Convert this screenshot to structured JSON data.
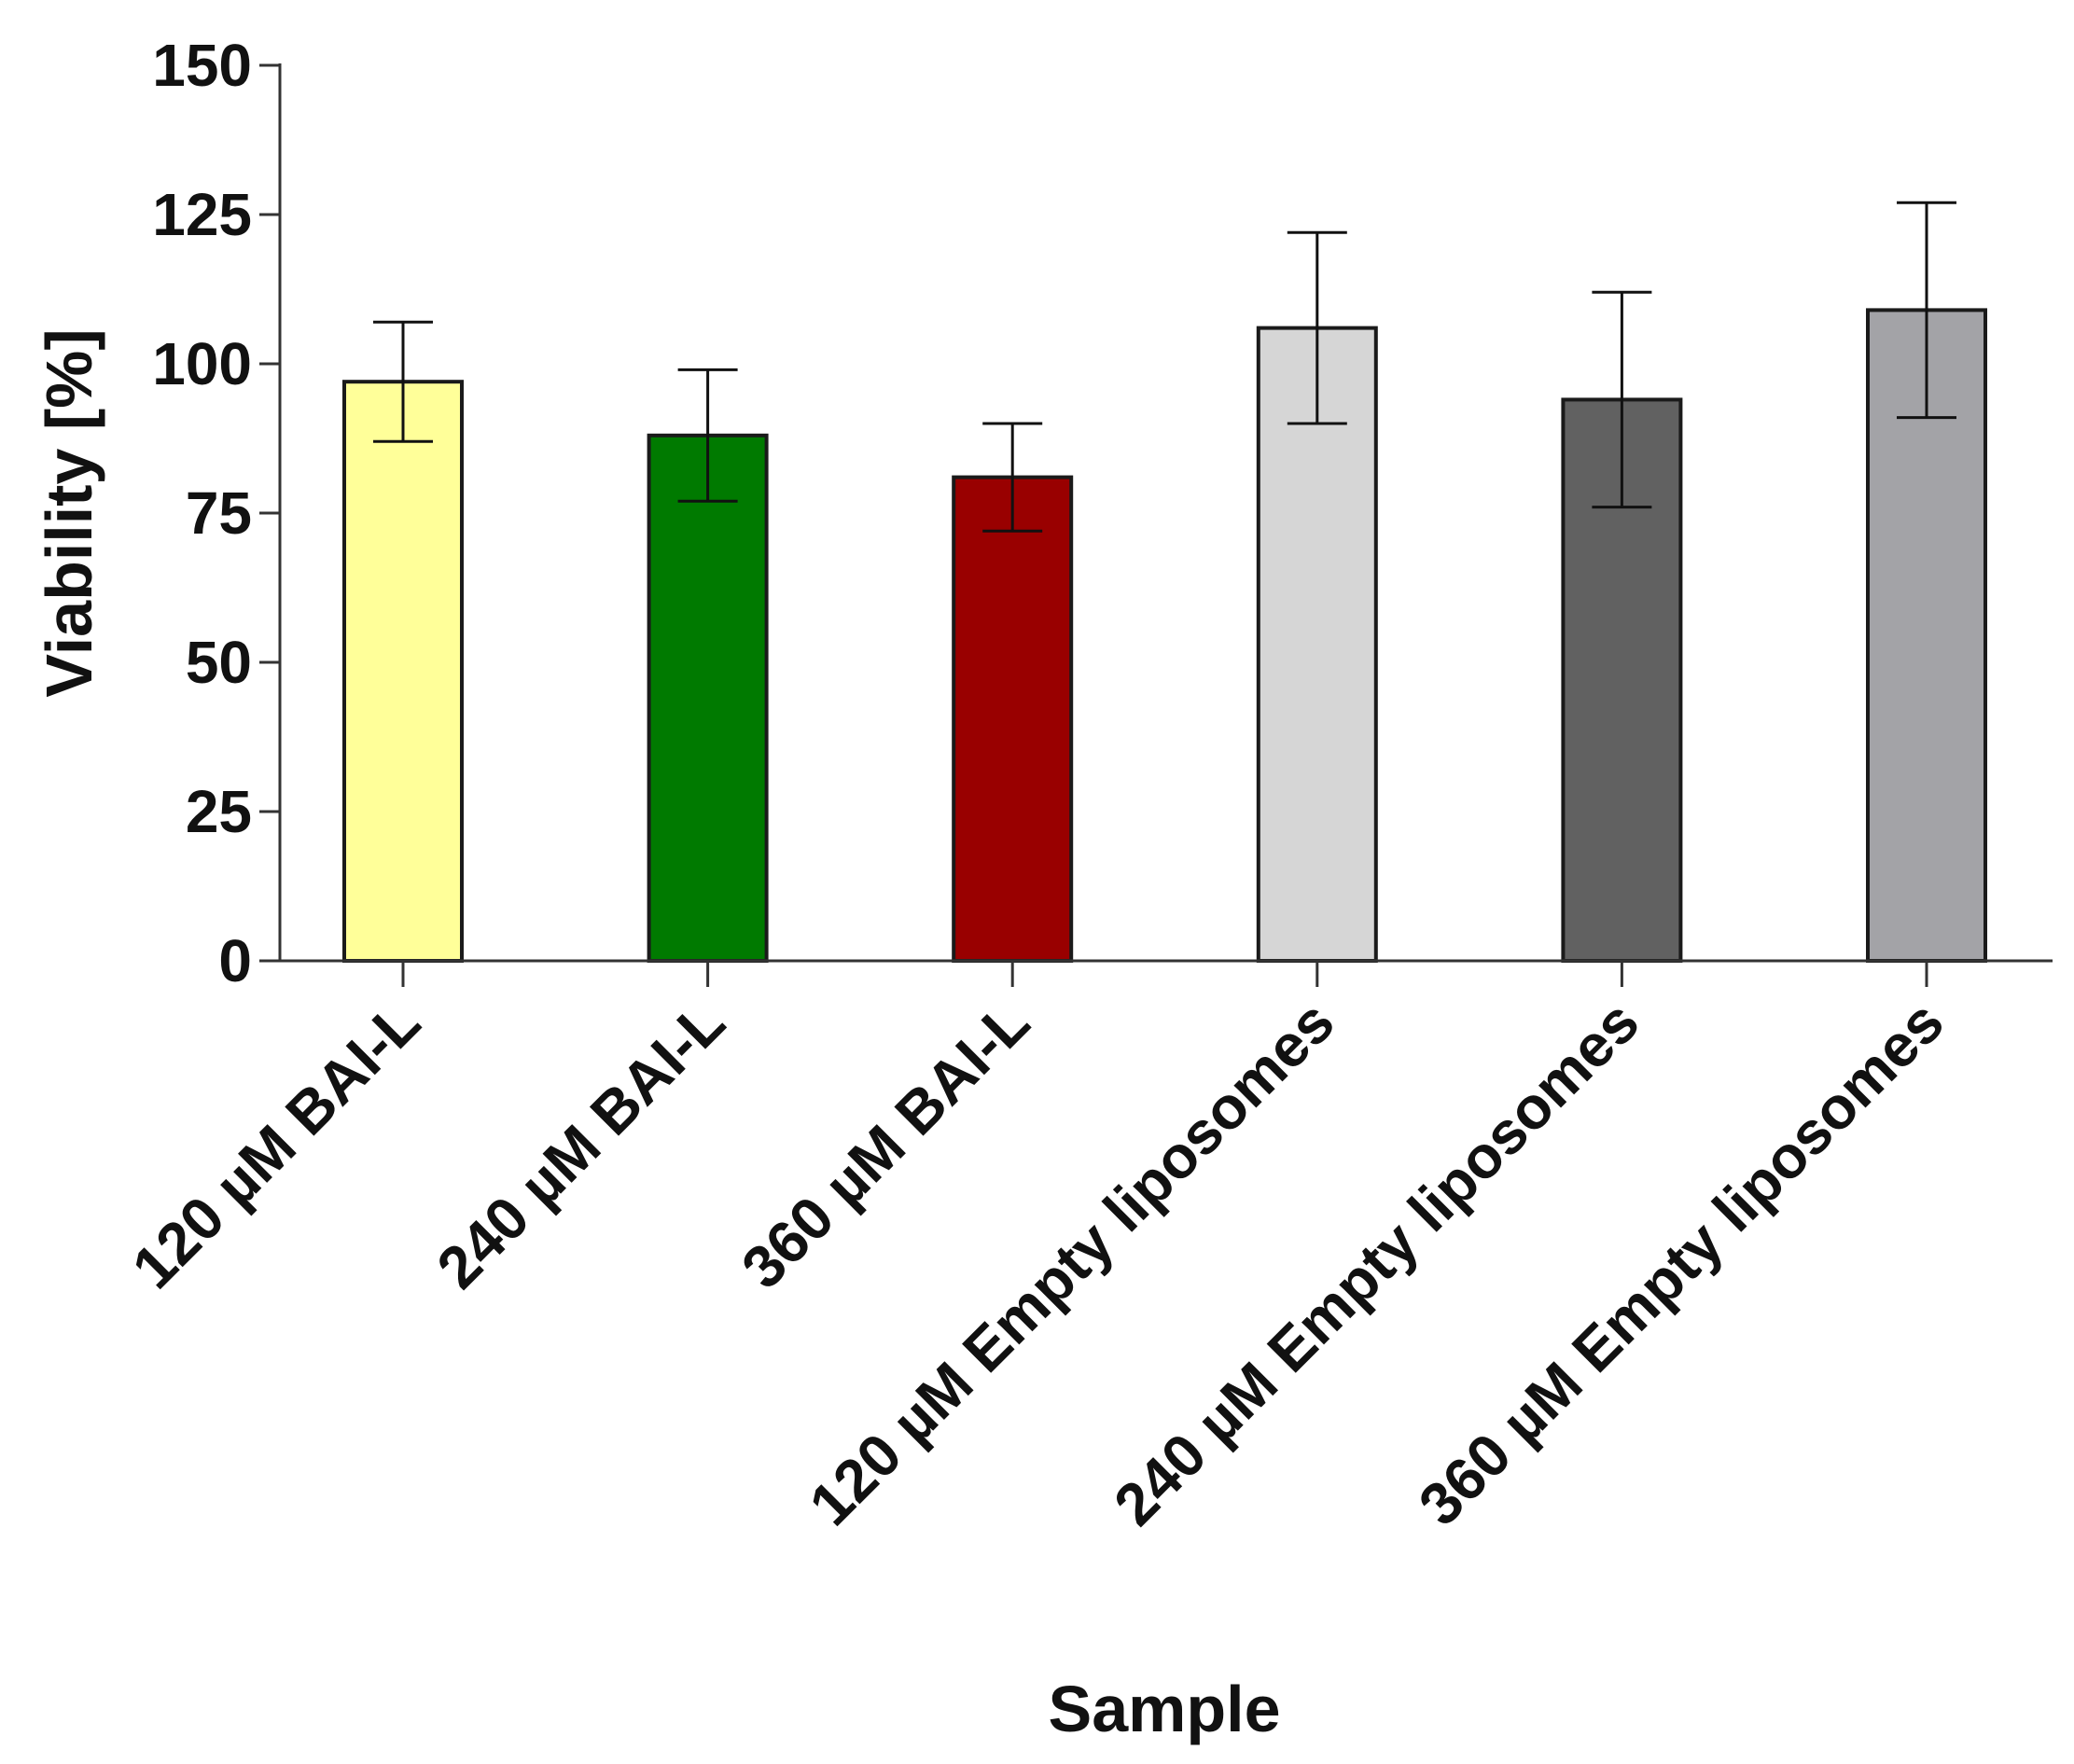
{
  "chart_data": {
    "type": "bar",
    "title": "",
    "xlabel": "Sample",
    "ylabel": "Viability [%]",
    "ylim": [
      0,
      150
    ],
    "yticks": [
      0,
      25,
      50,
      75,
      100,
      125,
      150
    ],
    "grid": false,
    "categories": [
      "120 µM BAI-L",
      "240 µM BAI-L",
      "360 µM BAI-L",
      "120 µM Empty liposomes",
      "240 µM Empty liposomes",
      "360 µM Empty liposomes"
    ],
    "values": [
      97,
      88,
      81,
      106,
      94,
      109
    ],
    "errors": [
      10,
      11,
      9,
      16,
      18,
      18
    ],
    "colors": [
      "#ffff99",
      "#007a00",
      "#990000",
      "#d6d6d6",
      "#616161",
      "#a3a3a7"
    ]
  }
}
